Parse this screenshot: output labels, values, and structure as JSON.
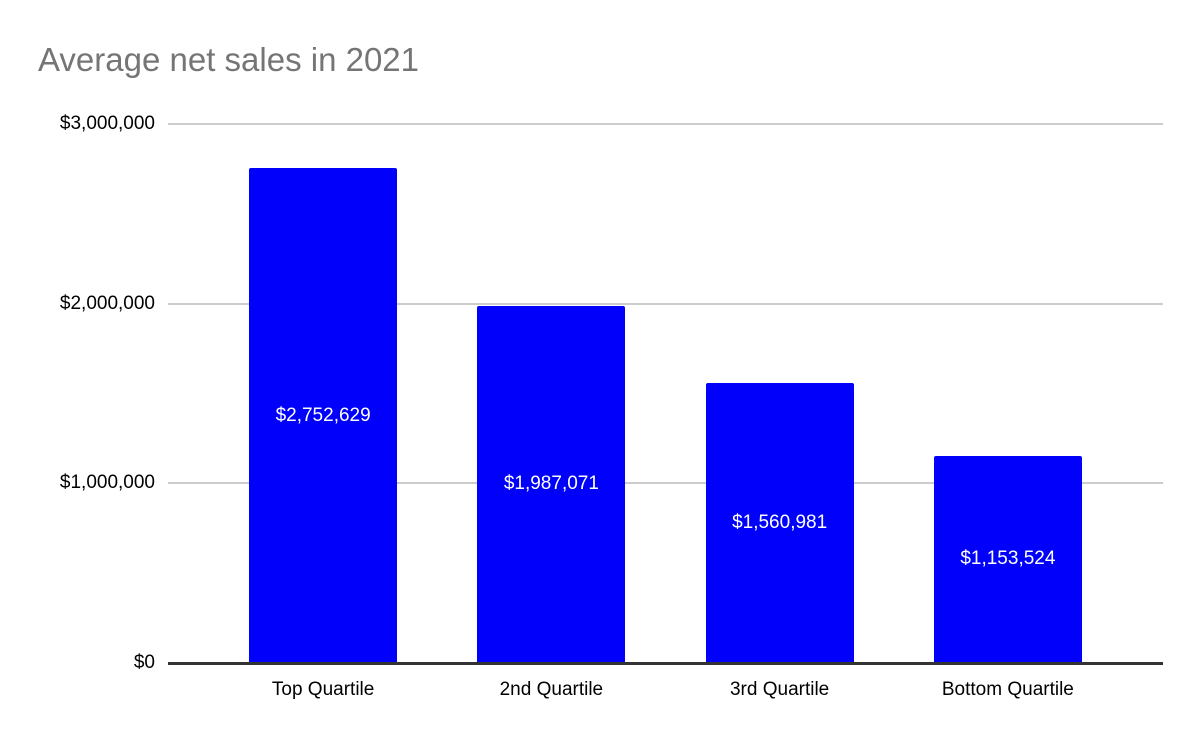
{
  "title": "Average net sales in 2021",
  "chart_data": {
    "type": "bar",
    "title": "Average net sales in 2021",
    "categories": [
      "Top Quartile",
      "2nd Quartile",
      "3rd Quartile",
      "Bottom Quartile"
    ],
    "values": [
      2752629,
      1987071,
      1560981,
      1153524
    ],
    "data_labels": [
      "$2,752,629",
      "$1,987,071",
      "$1,560,981",
      "$1,153,524"
    ],
    "xlabel": "",
    "ylabel": "",
    "ylim": [
      0,
      3000000
    ],
    "y_tick_values": [
      0,
      1000000,
      2000000,
      3000000
    ],
    "y_tick_labels": [
      "$0",
      "$1,000,000",
      "$2,000,000",
      "$3,000,000"
    ],
    "grid": "horizontal",
    "legend_position": "none",
    "colors": {
      "bar": "#0000fb",
      "title": "#757575",
      "gridline": "#cccccc",
      "axis_line": "#333333",
      "tick_text": "#000000",
      "data_label_text": "#ffffff"
    }
  }
}
